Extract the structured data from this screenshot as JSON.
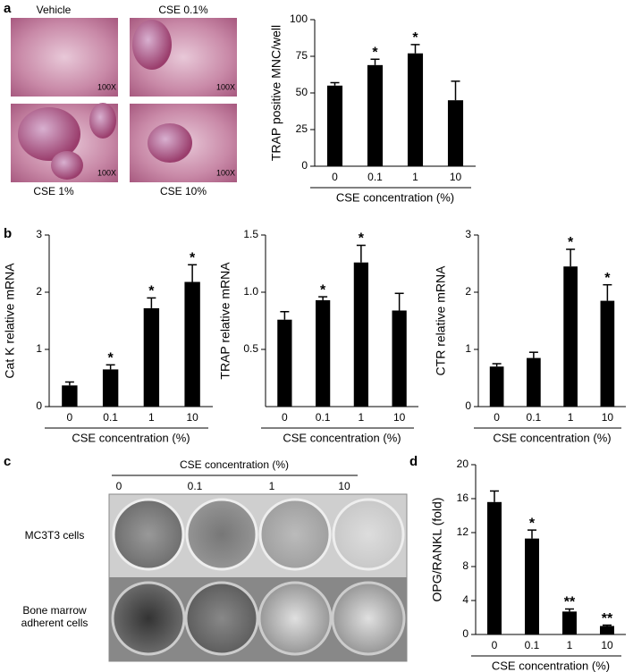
{
  "panel_labels": [
    "a",
    "b",
    "c",
    "d"
  ],
  "micrographs": {
    "labels": [
      "Vehicle",
      "CSE 0.1%",
      "CSE 1%",
      "CSE 10%"
    ],
    "magnification": "100X"
  },
  "plate": {
    "title": "CSE concentration  (%)",
    "columns": [
      "0",
      "0.1",
      "1",
      "10"
    ],
    "rows": [
      "MC3T3 cells",
      "Bone marrow adherent cells"
    ]
  },
  "chart_data": [
    {
      "type": "bar",
      "ylabel": "TRAP positive MNC/well",
      "xlabel": "CSE concentration (%)",
      "categories": [
        "0",
        "0.1",
        "1",
        "10"
      ],
      "values": [
        55,
        69,
        77,
        45
      ],
      "errors": [
        2,
        4,
        6,
        13
      ],
      "annotations": [
        null,
        "*",
        "*",
        null
      ],
      "color": "#000000",
      "ylim": [
        0,
        100
      ],
      "yticks": [
        0,
        25,
        50,
        75,
        100
      ]
    },
    {
      "type": "bar",
      "ylabel": "Cat K relative mRNA",
      "xlabel": "CSE concentration (%)",
      "categories": [
        "0",
        "0.1",
        "1",
        "10"
      ],
      "values": [
        0.37,
        0.65,
        1.72,
        2.18
      ],
      "errors": [
        0.06,
        0.08,
        0.18,
        0.3
      ],
      "annotations": [
        null,
        "*",
        "*",
        "*"
      ],
      "color": "#000000",
      "ylim": [
        0,
        3
      ],
      "yticks": [
        0,
        1,
        2,
        3
      ]
    },
    {
      "type": "bar",
      "ylabel": "TRAP relative mRNA",
      "xlabel": "CSE concentration (%)",
      "categories": [
        "0",
        "0.1",
        "1",
        "10"
      ],
      "values": [
        0.76,
        0.93,
        1.26,
        0.84
      ],
      "errors": [
        0.07,
        0.03,
        0.15,
        0.15
      ],
      "annotations": [
        null,
        "*",
        "*",
        null
      ],
      "color": "#000000",
      "ylim": [
        0,
        1.5
      ],
      "yticks": [
        0.5,
        {
          "value": 1,
          "label": "1.0"
        },
        1.5
      ]
    },
    {
      "type": "bar",
      "ylabel": "CTR relative mRNA",
      "xlabel": "CSE concentration (%)",
      "categories": [
        "0",
        "0.1",
        "1",
        "10"
      ],
      "values": [
        0.7,
        0.85,
        2.45,
        1.85
      ],
      "errors": [
        0.05,
        0.1,
        0.3,
        0.28
      ],
      "annotations": [
        null,
        null,
        "*",
        "*"
      ],
      "color": "#000000",
      "ylim": [
        0,
        3
      ],
      "yticks": [
        0,
        1,
        2,
        3
      ]
    },
    {
      "type": "bar",
      "ylabel": "OPG/RANKL (fold)",
      "xlabel": "CSE concentration (%)",
      "categories": [
        "0",
        "0.1",
        "1",
        "10"
      ],
      "values": [
        15.6,
        11.3,
        2.7,
        1.0
      ],
      "errors": [
        1.3,
        1.0,
        0.3,
        0.1
      ],
      "annotations": [
        null,
        "*",
        "**",
        "**"
      ],
      "color": "#000000",
      "ylim": [
        0,
        20
      ],
      "yticks": [
        0,
        4,
        8,
        12,
        16,
        20
      ]
    }
  ]
}
